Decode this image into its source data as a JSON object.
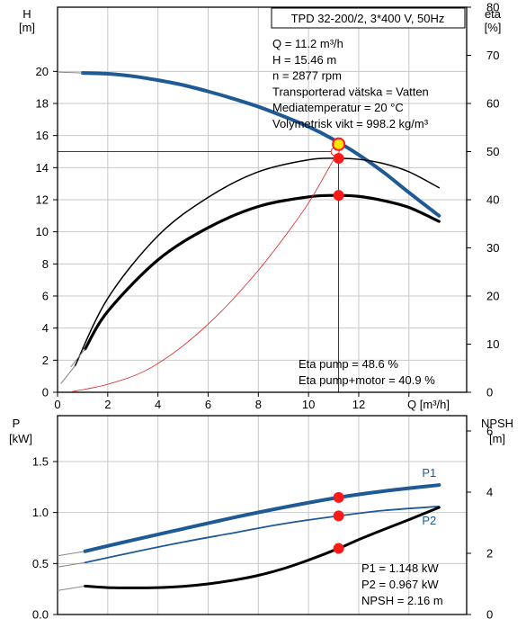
{
  "chart_data": [
    {
      "type": "line",
      "panel": "pump-curves",
      "title": "TPD 32-200/2, 3*400 V, 50Hz",
      "xlabel": "Q [m³/h]",
      "ylabel_left": [
        "H",
        "[m]"
      ],
      "ylabel_right": [
        "eta",
        "[%]"
      ],
      "xlim": [
        0,
        16.3
      ],
      "ylim_left": [
        0,
        24
      ],
      "ylim_right": [
        0,
        80
      ],
      "x_ticks": [
        "0",
        "2",
        "4",
        "6",
        "8",
        "10",
        "12"
      ],
      "y_ticks_left": [
        "0",
        "2",
        "4",
        "6",
        "8",
        "10",
        "12",
        "14",
        "16",
        "18",
        "20"
      ],
      "y_ticks_right": [
        "0",
        "10",
        "20",
        "30",
        "40",
        "50",
        "60",
        "70",
        "80"
      ],
      "grid": true,
      "series": [
        {
          "key": "H",
          "axis": "left",
          "color": "#1f5a94",
          "width": 4,
          "x": [
            1.0,
            2,
            3,
            4,
            5,
            6,
            7,
            8,
            9,
            10,
            11,
            12,
            13,
            14,
            15.2
          ],
          "y": [
            19.9,
            19.85,
            19.7,
            19.45,
            19.15,
            18.75,
            18.3,
            17.8,
            17.2,
            16.55,
            15.75,
            14.8,
            13.7,
            12.45,
            11.0
          ]
        },
        {
          "key": "eta_pump",
          "axis": "right",
          "color": "#000000",
          "width": 1.5,
          "x": [
            0.7,
            2,
            4,
            6,
            8,
            10,
            11.2,
            12,
            13,
            14,
            15.2
          ],
          "y": [
            5.5,
            19.5,
            32.5,
            40.5,
            45.8,
            48.3,
            48.6,
            48.4,
            47.5,
            45.8,
            42.5
          ]
        },
        {
          "key": "eta_pump_motor",
          "axis": "right",
          "color": "#000000",
          "width": 3.2,
          "x": [
            1.1,
            2,
            4,
            6,
            8,
            10,
            11.2,
            12,
            13,
            14,
            15.2
          ],
          "y": [
            9,
            16.8,
            27.5,
            34.2,
            38.6,
            40.6,
            40.9,
            40.7,
            39.8,
            38.4,
            35.5
          ]
        },
        {
          "key": "npsh_required_h_curve",
          "axis": "left",
          "color": "#e02020",
          "width": 0.8,
          "x": [
            0.6,
            2,
            3.5,
            5,
            6.5,
            8,
            9,
            10,
            11,
            11.2
          ],
          "y": [
            0.05,
            0.5,
            1.35,
            2.9,
            5.0,
            7.6,
            9.6,
            11.8,
            14.5,
            15.0
          ]
        }
      ],
      "operating_point": {
        "Q": 11.2,
        "H": 15.46,
        "eta_pump": 48.6,
        "eta_pump_motor": 40.9,
        "H_marker": 15.0,
        "H_ref": 15.0
      },
      "info": [
        "Q = 11.2 m³/h",
        "H = 15.46 m",
        "n = 2877 rpm",
        "Transporterad vätska = Vatten",
        "Mediatemperatur = 20 °C",
        "Volymetrisk vikt = 998.2 kg/m³"
      ],
      "annotations": [
        "Eta pump = 48.6 %",
        "Eta pump+motor = 40.9 %"
      ]
    },
    {
      "type": "line",
      "panel": "power-npsh",
      "ylabel_left": [
        "P",
        "[kW]"
      ],
      "ylabel_right": [
        "NPSH",
        "[m]"
      ],
      "xlim": [
        0,
        16.3
      ],
      "ylim_left": [
        0,
        1.95
      ],
      "ylim_right": [
        0,
        6.5
      ],
      "y_ticks_left": [
        "0.0",
        "0.5",
        "1.0",
        "1.5"
      ],
      "y_ticks_right": [
        "0",
        "2",
        "4",
        "6"
      ],
      "grid": true,
      "series": [
        {
          "key": "P1",
          "name": "P1",
          "axis": "left",
          "color": "#1f5a94",
          "width": 4,
          "x": [
            1.1,
            3,
            5,
            7,
            9,
            11.2,
            13,
            15.2
          ],
          "y": [
            0.62,
            0.73,
            0.84,
            0.95,
            1.05,
            1.148,
            1.21,
            1.27
          ]
        },
        {
          "key": "P2",
          "name": "P2",
          "axis": "left",
          "color": "#1f5a94",
          "width": 1.8,
          "x": [
            1.1,
            3,
            5,
            7,
            9,
            11.2,
            13,
            15.2
          ],
          "y": [
            0.51,
            0.61,
            0.71,
            0.8,
            0.89,
            0.967,
            1.02,
            1.06
          ]
        },
        {
          "key": "NPSH",
          "axis": "right",
          "color": "#000000",
          "width": 3,
          "x": [
            1.1,
            2,
            3,
            4,
            5,
            6,
            7,
            8,
            9,
            10,
            11.2,
            12,
            13,
            14,
            15.2
          ],
          "y": [
            0.93,
            0.88,
            0.87,
            0.88,
            0.92,
            1.0,
            1.12,
            1.28,
            1.5,
            1.78,
            2.16,
            2.45,
            2.78,
            3.1,
            3.5
          ]
        }
      ],
      "operating_point": {
        "Q": 11.2,
        "P1": 1.148,
        "P2": 0.967,
        "NPSH": 2.16
      },
      "annotations": [
        "P1 = 1.148 kW",
        "P2 = 0.967 kW",
        "NPSH = 2.16 m"
      ]
    }
  ],
  "colors": {
    "blue": "#1f5a94",
    "marker": "#ff1a1a",
    "marker_yellow": "#ffe600",
    "grid": "#c8c8c8"
  }
}
